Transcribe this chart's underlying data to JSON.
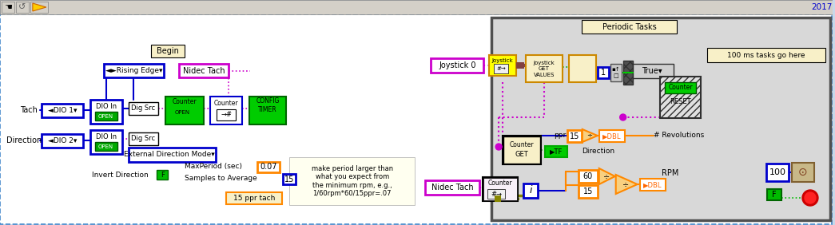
{
  "year_text": "2017",
  "periodic_tasks_label": "Periodic Tasks",
  "begin_label": "Begin",
  "rising_edge_label": "◄►Rising Edge▾",
  "nidec_tach_label1": "Nidec Tach",
  "nidec_tach_label2": "Nidec Tach",
  "joystick0_label": "Joystick 0",
  "ms100_label": "100 ms tasks go here",
  "tach_label": "Tach",
  "direction_label": "Direction",
  "dio1_label": "◄DIO 1▾",
  "dio2_label": "◄DIO 2▾",
  "dig_src_label": "Dig Src",
  "open_label": "OPEN",
  "ext_dir_label": "External Direction Mode▾",
  "invert_dir_label": "Invert Direction",
  "maxperiod_label": "MaxPeriod (sec)",
  "maxperiod_val": "0.07",
  "samples_label": "Samples to Average",
  "samples_val": "15",
  "ppr_tach_label": "15 ppr tach",
  "comment_text": "make period larger than\nwhat you expect from\nthe minimum rpm, e.g.,\n1/60rpm*60/15ppr=.07",
  "ppr_label": "ppr",
  "ppr_val": "15",
  "revolutions_label": "# Revolutions",
  "direction_out_label": "Direction",
  "rpm_label": "RPM",
  "val_60": "60",
  "val_15": "15",
  "val_100": "100",
  "val_1": "1",
  "true_label": "True",
  "get_values_label": "GET\nVALUES",
  "counter_reset_label": "Counter\nRESET",
  "counter_get_label": "Counter\nGET",
  "config_timer_label": "CONFIG\nTIMER",
  "joystick_block_label": "Joystick",
  "joystick_get_label": "Joystick\nGET\nVALUES",
  "counter_label": "Counter",
  "dio_in_label": "DIO In"
}
